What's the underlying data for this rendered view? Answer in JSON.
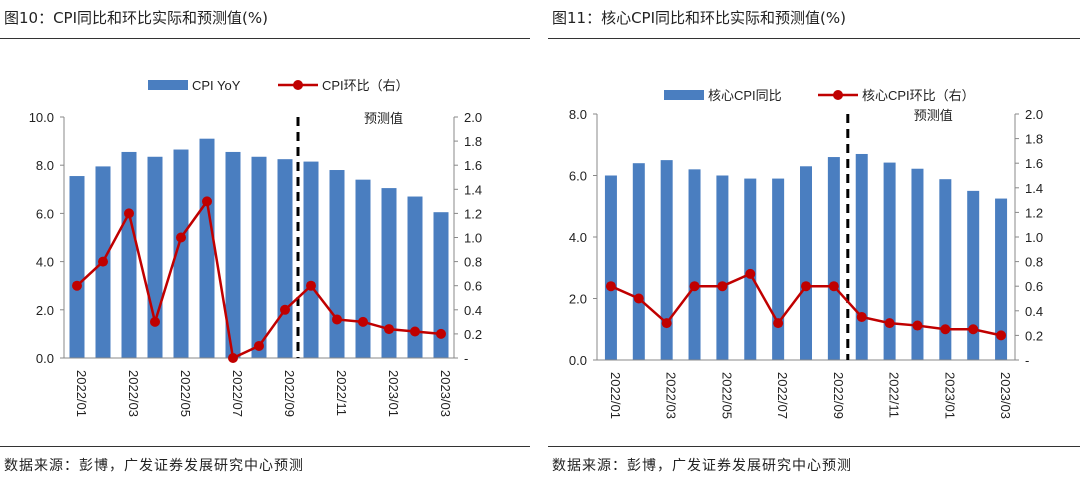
{
  "panels": [
    {
      "title": "图10：CPI同比和环比实际和预测值(%)",
      "source": "数据来源：彭博，广发证券发展研究中心预测",
      "chart_data": {
        "type": "bar+line",
        "categories": [
          "2022/01",
          "2022/02",
          "2022/03",
          "2022/04",
          "2022/05",
          "2022/06",
          "2022/07",
          "2022/08",
          "2022/09",
          "2022/10",
          "2022/11",
          "2022/12",
          "2023/01",
          "2023/02",
          "2023/03"
        ],
        "xtick_labels": [
          "2022/01",
          "2022/03",
          "2022/05",
          "2022/07",
          "2022/09",
          "2022/11",
          "2023/01",
          "2023/03"
        ],
        "series": [
          {
            "name": "CPI YoY",
            "kind": "bar",
            "axis": "left",
            "color": "#4a7ec0",
            "values": [
              7.55,
              7.95,
              8.55,
              8.35,
              8.65,
              9.1,
              8.55,
              8.35,
              8.25,
              8.15,
              7.8,
              7.4,
              7.05,
              6.7,
              6.05
            ]
          },
          {
            "name": "CPI环比（右）",
            "kind": "line",
            "axis": "right",
            "color": "#c00000",
            "values": [
              0.6,
              0.8,
              1.2,
              0.3,
              1.0,
              1.3,
              0.0,
              0.1,
              0.4,
              0.6,
              0.32,
              0.3,
              0.24,
              0.22,
              0.2
            ]
          }
        ],
        "y_left": {
          "min": 0,
          "max": 10,
          "step": 2,
          "ticks": [
            "0.0",
            "2.0",
            "4.0",
            "6.0",
            "8.0",
            "10.0"
          ]
        },
        "y_right": {
          "min": 0,
          "max": 2.0,
          "ticks": [
            "-",
            "0.2",
            "0.4",
            "0.6",
            "0.8",
            "1.0",
            "1.2",
            "1.4",
            "1.6",
            "1.8",
            "2.0"
          ]
        },
        "forecast_start_index": 9,
        "forecast_label": "预测值"
      }
    },
    {
      "title": "图11：核心CPI同比和环比实际和预测值(%)",
      "source": "数据来源：彭博，广发证券发展研究中心预测",
      "chart_data": {
        "type": "bar+line",
        "categories": [
          "2022/01",
          "2022/02",
          "2022/03",
          "2022/04",
          "2022/05",
          "2022/06",
          "2022/07",
          "2022/08",
          "2022/09",
          "2022/10",
          "2022/11",
          "2022/12",
          "2023/01",
          "2023/02",
          "2023/03"
        ],
        "xtick_labels": [
          "2022/01",
          "2022/03",
          "2022/05",
          "2022/07",
          "2022/09",
          "2022/11",
          "2023/01",
          "2023/03"
        ],
        "series": [
          {
            "name": "核心CPI同比",
            "kind": "bar",
            "axis": "left",
            "color": "#4a7ec0",
            "values": [
              6.0,
              6.4,
              6.5,
              6.2,
              6.0,
              5.9,
              5.9,
              6.3,
              6.6,
              6.7,
              6.42,
              6.22,
              5.88,
              5.5,
              5.25
            ]
          },
          {
            "name": "核心CPI环比（右）",
            "kind": "line",
            "axis": "right",
            "color": "#c00000",
            "values": [
              0.6,
              0.5,
              0.3,
              0.6,
              0.6,
              0.7,
              0.3,
              0.6,
              0.6,
              0.35,
              0.3,
              0.28,
              0.25,
              0.25,
              0.2
            ]
          }
        ],
        "y_left": {
          "min": 0,
          "max": 8,
          "step": 2,
          "ticks": [
            "0.0",
            "2.0",
            "4.0",
            "6.0",
            "8.0"
          ]
        },
        "y_right": {
          "min": 0,
          "max": 2.0,
          "ticks": [
            "-",
            "0.2",
            "0.4",
            "0.6",
            "0.8",
            "1.0",
            "1.2",
            "1.4",
            "1.6",
            "1.8",
            "2.0"
          ]
        },
        "forecast_start_index": 9,
        "forecast_label": "预测值"
      }
    }
  ]
}
